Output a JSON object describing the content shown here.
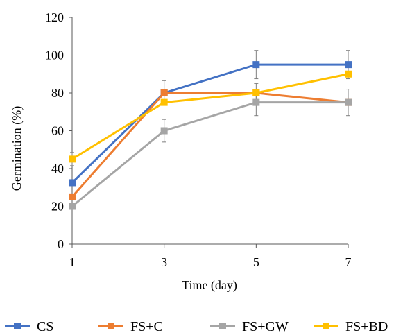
{
  "chart_data": {
    "type": "line",
    "x": [
      1,
      3,
      5,
      7
    ],
    "xlabel": "Time (day)",
    "ylabel": "Germination (%)",
    "xlim": [
      1,
      7
    ],
    "ylim": [
      0,
      120
    ],
    "xticks": [
      "1",
      "3",
      "5",
      "7"
    ],
    "yticks": [
      "0",
      "20",
      "40",
      "60",
      "80",
      "100",
      "120"
    ],
    "grid": false,
    "legend": "bottom",
    "series": [
      {
        "name": "CS",
        "color": "#4472C4",
        "values": [
          32.5,
          80,
          95,
          95
        ],
        "errors": [
          0,
          0,
          7.5,
          7.5
        ]
      },
      {
        "name": "FS+C",
        "color": "#ED7D31",
        "values": [
          25,
          80,
          80,
          75
        ],
        "errors": [
          0,
          6.5,
          5,
          0
        ]
      },
      {
        "name": "FS+GW",
        "color": "#A5A5A5",
        "values": [
          20,
          60,
          75,
          75
        ],
        "errors": [
          0,
          6,
          7,
          7
        ]
      },
      {
        "name": "FS+BD",
        "color": "#FFC000",
        "values": [
          45,
          75,
          80,
          90
        ],
        "errors": [
          3.5,
          0,
          0,
          0
        ]
      }
    ]
  }
}
